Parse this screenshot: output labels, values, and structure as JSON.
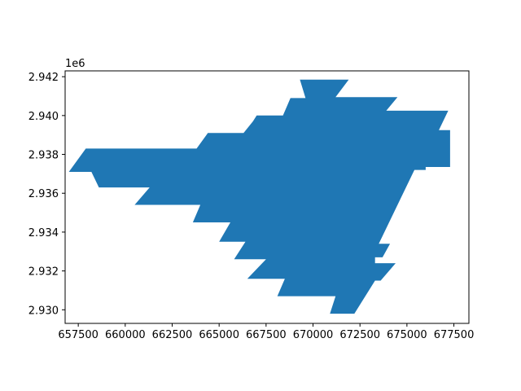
{
  "chart_data": {
    "type": "area",
    "title": "",
    "xlabel": "",
    "ylabel": "",
    "y_offset_text": "1e6",
    "xlim": [
      656800,
      678300
    ],
    "ylim": [
      2929300,
      2942300
    ],
    "x_ticks": [
      657500,
      660000,
      662500,
      665000,
      667500,
      670000,
      672500,
      675000,
      677500
    ],
    "y_ticks": [
      2930000,
      2932000,
      2934000,
      2936000,
      2938000,
      2940000,
      2942000
    ],
    "x_tick_labels": [
      "657500",
      "660000",
      "662500",
      "665000",
      "667500",
      "670000",
      "672500",
      "675000",
      "677500"
    ],
    "y_tick_labels": [
      "2.930",
      "2.932",
      "2.934",
      "2.936",
      "2.938",
      "2.940",
      "2.942"
    ],
    "grid": false,
    "fill_color": "#1f77b4",
    "series": [
      {
        "polygon": [
          [
            669300,
            2941850
          ],
          [
            671900,
            2941850
          ],
          [
            671200,
            2940950
          ],
          [
            674500,
            2940950
          ],
          [
            673900,
            2940250
          ],
          [
            677200,
            2940250
          ],
          [
            676700,
            2939250
          ],
          [
            677300,
            2939250
          ],
          [
            677300,
            2937350
          ],
          [
            676000,
            2937350
          ],
          [
            676000,
            2937200
          ],
          [
            675400,
            2937200
          ],
          [
            673500,
            2933400
          ],
          [
            674100,
            2933400
          ],
          [
            673700,
            2932700
          ],
          [
            673300,
            2932700
          ],
          [
            673300,
            2932400
          ],
          [
            674400,
            2932400
          ],
          [
            673600,
            2931500
          ],
          [
            673300,
            2931500
          ],
          [
            672200,
            2929800
          ],
          [
            670900,
            2929800
          ],
          [
            671200,
            2930700
          ],
          [
            668100,
            2930700
          ],
          [
            668500,
            2931600
          ],
          [
            666500,
            2931600
          ],
          [
            667500,
            2932600
          ],
          [
            665800,
            2932600
          ],
          [
            666400,
            2933500
          ],
          [
            665000,
            2933500
          ],
          [
            665600,
            2934500
          ],
          [
            663600,
            2934500
          ],
          [
            664000,
            2935400
          ],
          [
            660500,
            2935400
          ],
          [
            661300,
            2936300
          ],
          [
            658600,
            2936300
          ],
          [
            658200,
            2937100
          ],
          [
            657000,
            2937100
          ],
          [
            657900,
            2938300
          ],
          [
            663800,
            2938300
          ],
          [
            664400,
            2939100
          ],
          [
            666300,
            2939100
          ],
          [
            666800,
            2939700
          ],
          [
            667000,
            2940000
          ],
          [
            668400,
            2940000
          ],
          [
            668800,
            2940900
          ],
          [
            669600,
            2940900
          ]
        ]
      }
    ]
  }
}
